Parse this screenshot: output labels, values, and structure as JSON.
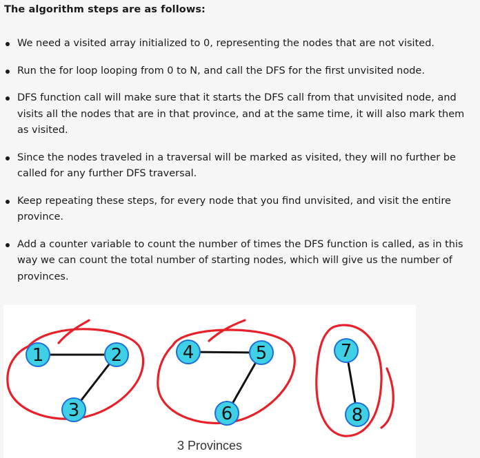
{
  "heading": "The algorithm steps are as follows:",
  "steps": [
    "We need a visited array initialized to 0, representing the nodes that are not visited.",
    "Run the for loop looping from 0 to N, and call the DFS for the first unvisited node.",
    "DFS function call will make sure that it starts the DFS call from that unvisited node, and visits all the nodes that are in that province, and at the same time, it will also mark them as visited.",
    "Since the nodes traveled in a traversal will be marked as visited, they will no further be called for any further DFS traversal.",
    "Keep repeating these steps, for every node that you find unvisited, and visit the entire province.",
    "Add a counter variable to count the number of times the DFS function is called, as in this way we can count the total number of starting nodes, which will give us the number of provinces."
  ],
  "figure": {
    "caption": "3 Provinces",
    "node_color": "#3fd0e6",
    "node_border": "#1d6fd8",
    "circle_color": "#e8202a",
    "nodes": [
      {
        "id": "1"
      },
      {
        "id": "2"
      },
      {
        "id": "3"
      },
      {
        "id": "4"
      },
      {
        "id": "5"
      },
      {
        "id": "6"
      },
      {
        "id": "7"
      },
      {
        "id": "8"
      }
    ],
    "edges": [
      [
        "1",
        "2"
      ],
      [
        "2",
        "3"
      ],
      [
        "4",
        "5"
      ],
      [
        "5",
        "6"
      ],
      [
        "7",
        "8"
      ]
    ]
  }
}
